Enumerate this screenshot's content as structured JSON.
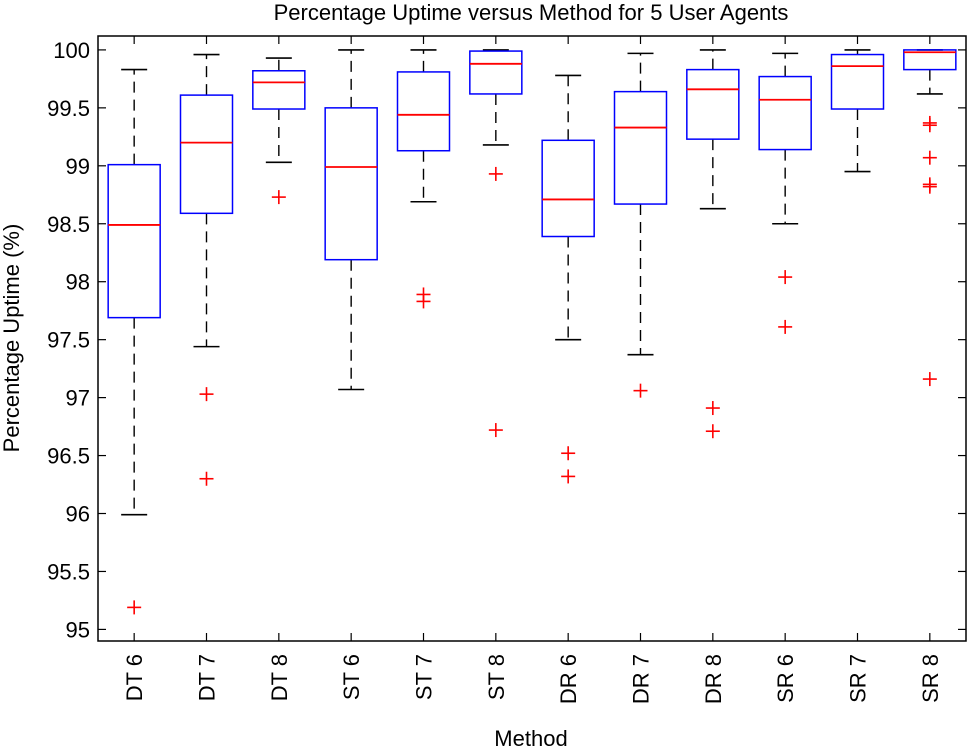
{
  "chart_data": {
    "type": "box",
    "title": "Percentage Uptime versus Method for 5 User Agents",
    "xlabel": "Method",
    "ylabel": "Percentage Uptime (%)",
    "ylim": [
      94.9,
      100.12
    ],
    "yticks": [
      95,
      95.5,
      96,
      96.5,
      97,
      97.5,
      98,
      98.5,
      99,
      99.5,
      100
    ],
    "ytick_labels": [
      "95",
      "95.5",
      "96",
      "96.5",
      "97",
      "97.5",
      "98",
      "98.5",
      "99",
      "99.5",
      "100"
    ],
    "grid": false,
    "categories": [
      "DT 6",
      "DT 7",
      "DT 8",
      "ST 6",
      "ST 7",
      "ST 8",
      "DR 6",
      "DR 7",
      "DR 8",
      "SR 6",
      "SR 7",
      "SR 8"
    ],
    "boxes": [
      {
        "whisker_low": 95.99,
        "q1": 97.69,
        "median": 98.49,
        "q3": 99.01,
        "whisker_high": 99.83,
        "outliers": [
          95.19
        ]
      },
      {
        "whisker_low": 97.44,
        "q1": 98.59,
        "median": 99.2,
        "q3": 99.61,
        "whisker_high": 99.96,
        "outliers": [
          97.03,
          96.3
        ]
      },
      {
        "whisker_low": 99.03,
        "q1": 99.49,
        "median": 99.72,
        "q3": 99.82,
        "whisker_high": 99.93,
        "outliers": [
          98.73
        ]
      },
      {
        "whisker_low": 97.07,
        "q1": 98.19,
        "median": 98.99,
        "q3": 99.5,
        "whisker_high": 100.0,
        "outliers": []
      },
      {
        "whisker_low": 98.69,
        "q1": 99.13,
        "median": 99.44,
        "q3": 99.81,
        "whisker_high": 100.0,
        "outliers": [
          97.89,
          97.83
        ]
      },
      {
        "whisker_low": 99.18,
        "q1": 99.62,
        "median": 99.88,
        "q3": 99.99,
        "whisker_high": 100.0,
        "outliers": [
          98.93,
          96.72
        ]
      },
      {
        "whisker_low": 97.5,
        "q1": 98.39,
        "median": 98.71,
        "q3": 99.22,
        "whisker_high": 99.78,
        "outliers": [
          96.52,
          96.32
        ]
      },
      {
        "whisker_low": 97.37,
        "q1": 98.67,
        "median": 99.33,
        "q3": 99.64,
        "whisker_high": 99.97,
        "outliers": [
          97.06
        ]
      },
      {
        "whisker_low": 98.63,
        "q1": 99.23,
        "median": 99.66,
        "q3": 99.83,
        "whisker_high": 100.0,
        "outliers": [
          96.91,
          96.71
        ]
      },
      {
        "whisker_low": 98.5,
        "q1": 99.14,
        "median": 99.57,
        "q3": 99.77,
        "whisker_high": 99.97,
        "outliers": [
          98.04,
          97.61
        ]
      },
      {
        "whisker_low": 98.95,
        "q1": 99.49,
        "median": 99.86,
        "q3": 99.96,
        "whisker_high": 100.0,
        "outliers": []
      },
      {
        "whisker_low": 99.62,
        "q1": 99.83,
        "median": 99.98,
        "q3": 100.0,
        "whisker_high": 100.0,
        "outliers": [
          99.37,
          99.35,
          99.07,
          98.84,
          98.82,
          97.16
        ]
      }
    ],
    "colors": {
      "box": "#0000ff",
      "median": "#ff0000",
      "whisker": "#000000",
      "outlier": "#ff0000"
    }
  }
}
